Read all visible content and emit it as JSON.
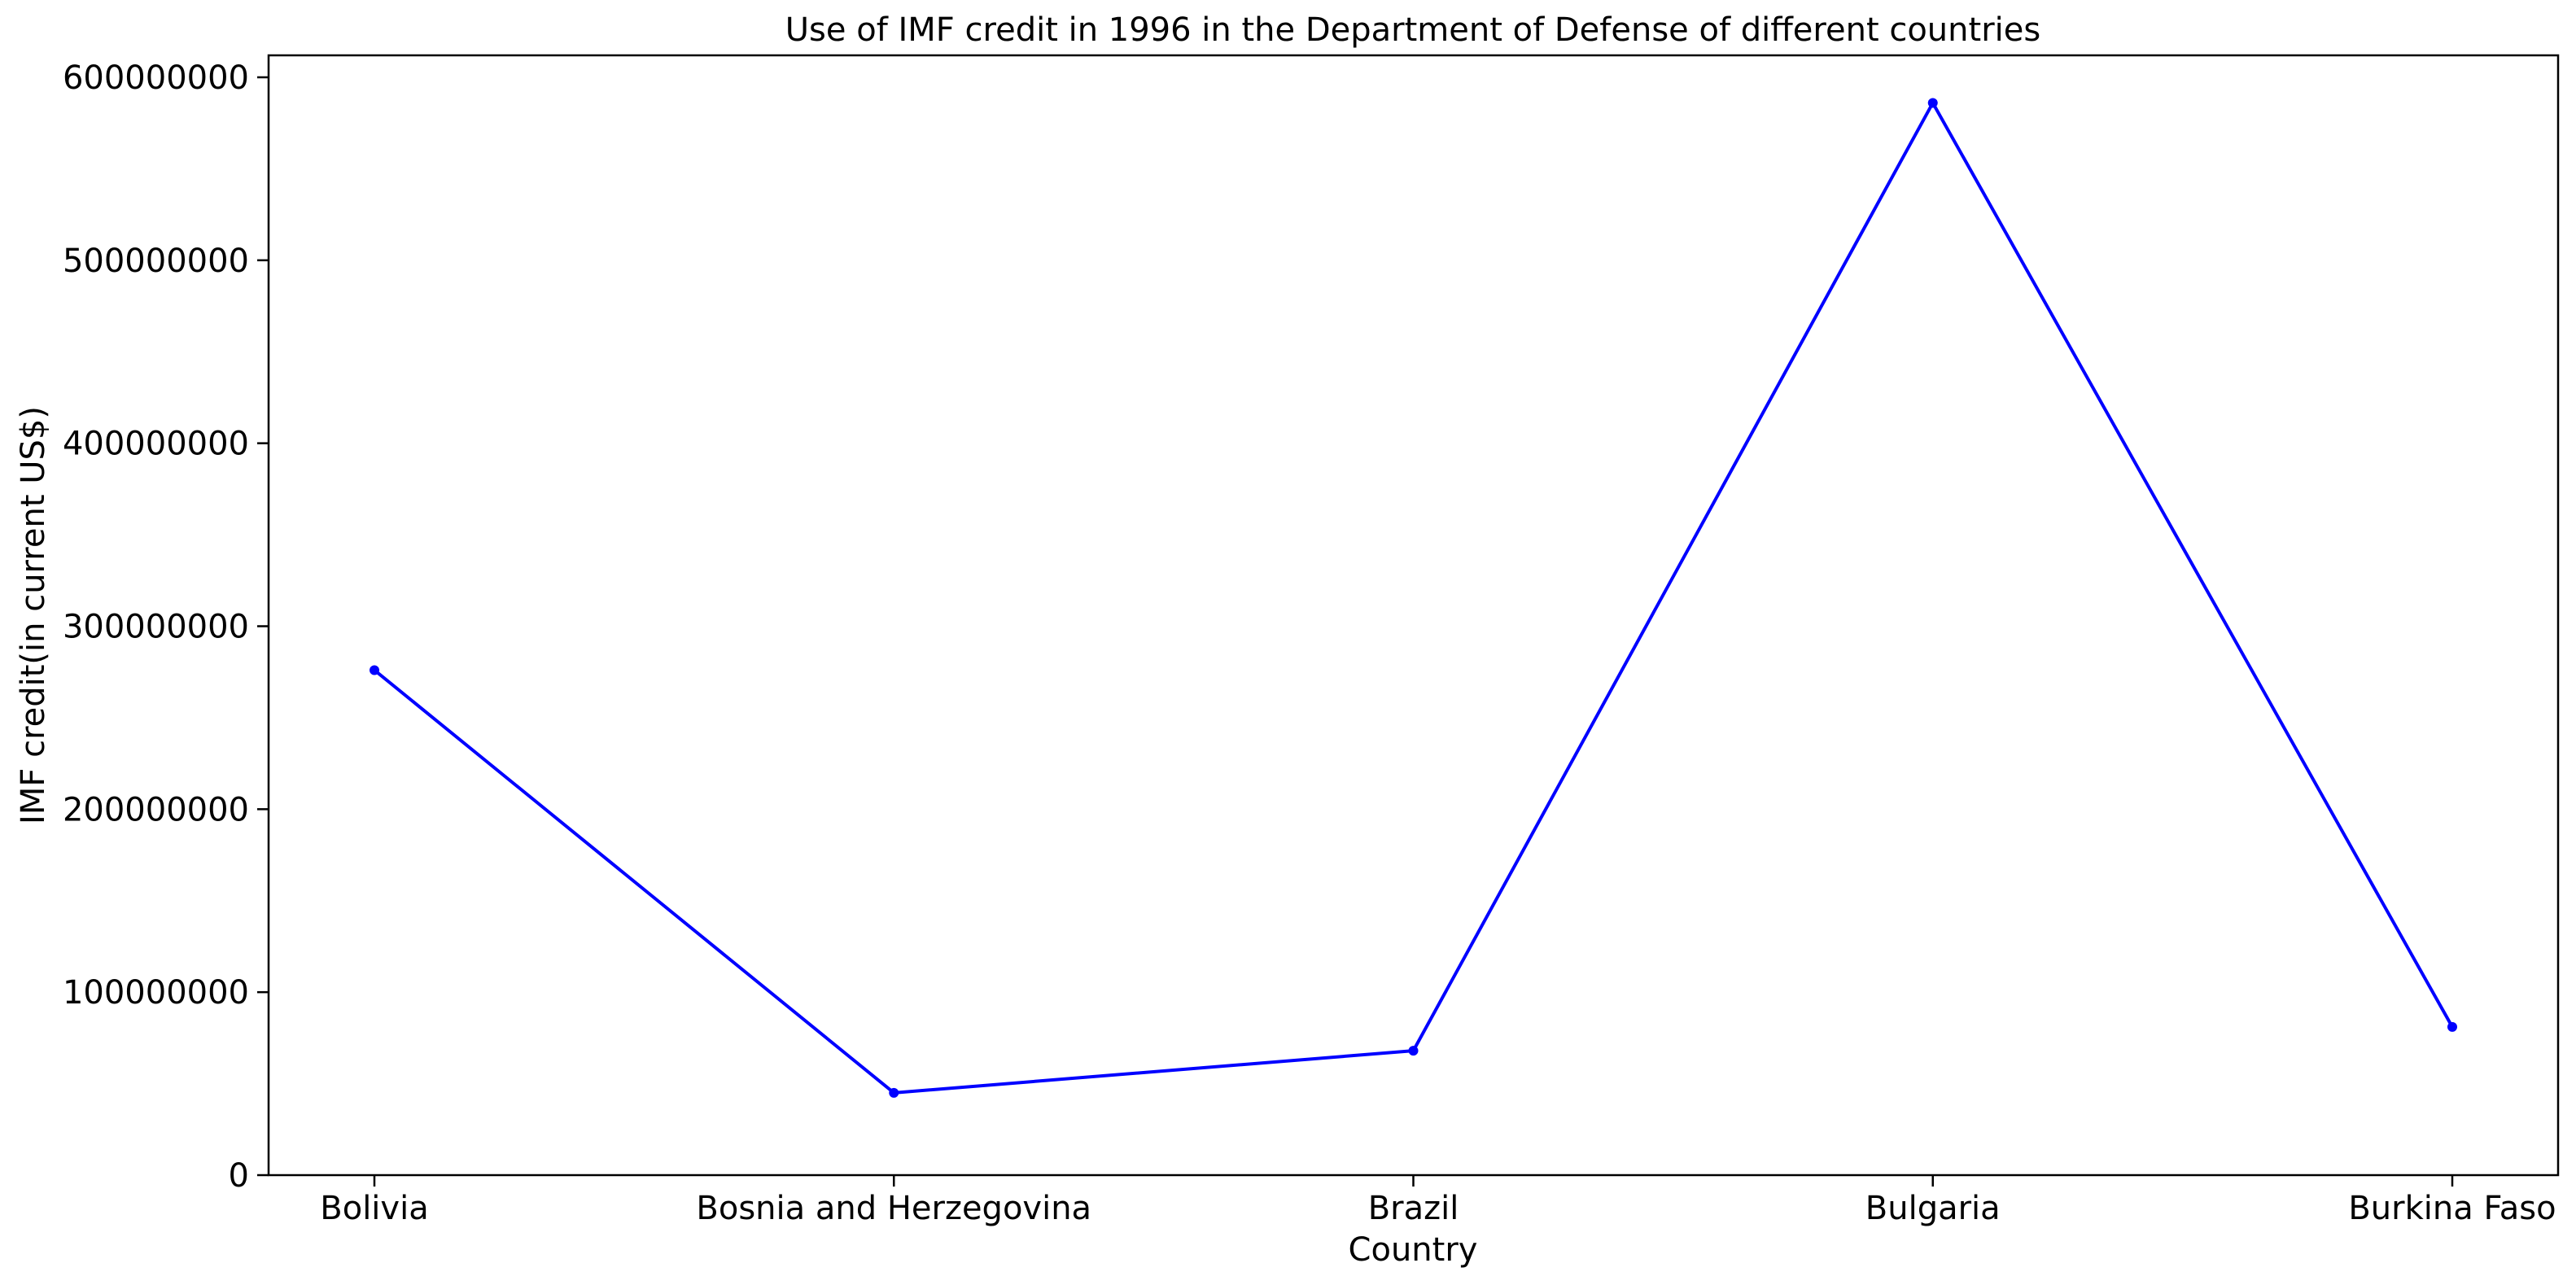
{
  "chart_data": {
    "type": "line",
    "title": "Use of IMF credit in 1996 in the Department of Defense of different countries",
    "xlabel": "Country",
    "ylabel": "IMF credit(in current US$)",
    "categories": [
      "Bolivia",
      "Bosnia and Herzegovina",
      "Brazil",
      "Bulgaria",
      "Burkina Faso"
    ],
    "series": [
      {
        "values": [
          276000000,
          45000000,
          68000000,
          586000000,
          81000000
        ],
        "color": "#0000ff",
        "marker": "dot"
      }
    ],
    "ylim": [
      0,
      612000000
    ],
    "yticks": [
      0,
      100000000,
      200000000,
      300000000,
      400000000,
      500000000,
      600000000
    ],
    "ytick_labels": [
      "0",
      "100000000",
      "200000000",
      "300000000",
      "400000000",
      "500000000",
      "600000000"
    ],
    "grid": false,
    "legend": "none"
  }
}
